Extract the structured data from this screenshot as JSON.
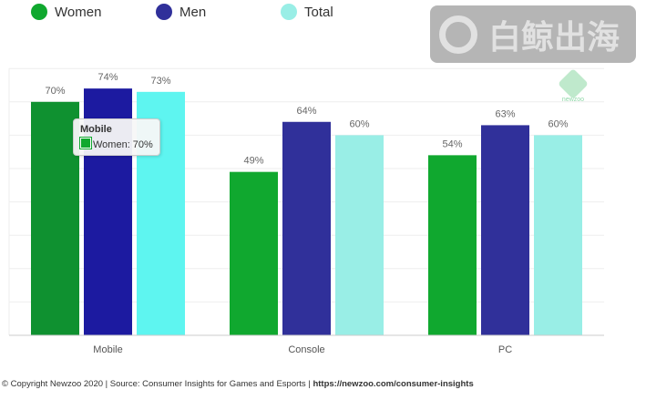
{
  "chart_data": {
    "type": "bar",
    "categories": [
      "Mobile",
      "Console",
      "PC"
    ],
    "series": [
      {
        "name": "Women",
        "values": [
          70,
          49,
          54
        ],
        "color": "#10a82f",
        "highlight": "#0f9130"
      },
      {
        "name": "Men",
        "values": [
          74,
          64,
          63
        ],
        "color": "#30309a",
        "highlight": "#1c1aa0"
      },
      {
        "name": "Total",
        "values": [
          73,
          60,
          60
        ],
        "color": "#99eee6",
        "highlight": "#5ef5f0"
      }
    ],
    "ylim": [
      0,
      100
    ],
    "grid": true,
    "legend": "top-left",
    "highlighted_category": "Mobile"
  },
  "tooltip": {
    "title": "Mobile",
    "line": "Women: 70%"
  },
  "footer": {
    "text": "© Copyright Newzoo 2020 | Source: Consumer Insights for Games and Esports | ",
    "link": "https://newzoo.com/consumer-insights"
  },
  "logo": "newzoo",
  "watermark": "白鲸出海"
}
